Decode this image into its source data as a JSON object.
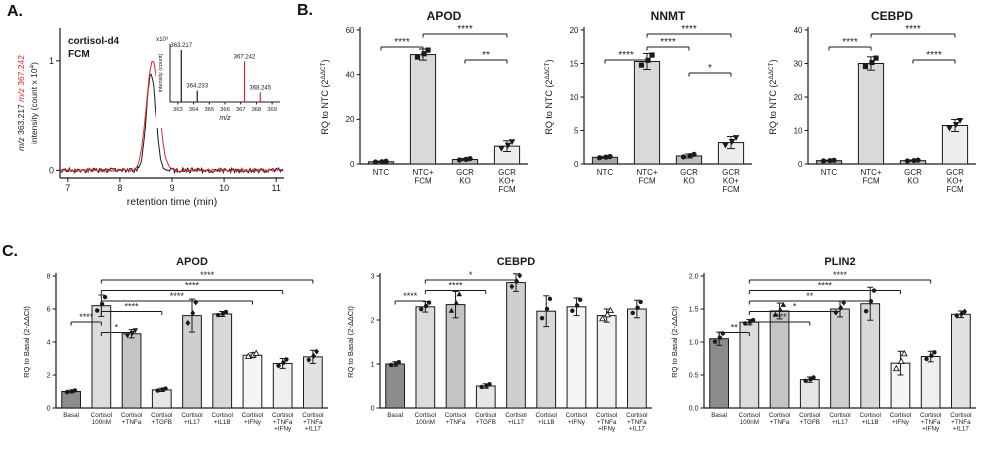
{
  "panels": {
    "a_label": "A.",
    "b_label": "B.",
    "c_label": "C."
  },
  "chart_data": [
    {
      "id": "a_chromatogram",
      "type": "line",
      "legend": [
        {
          "label": "cortisol-d4",
          "color": "#d9292b"
        },
        {
          "label": "FCM",
          "color": "#1a1a1a"
        }
      ],
      "ylabel_line1": [
        {
          "text": "m/z ",
          "italic": true,
          "color": "#1a1a1a"
        },
        {
          "text": "363.217 ",
          "italic": false,
          "color": "#1a1a1a"
        },
        {
          "text": "m/z ",
          "italic": true,
          "color": "#d9292b"
        },
        {
          "text": "367.242",
          "italic": false,
          "color": "#d9292b"
        }
      ],
      "ylabel_line2": {
        "pre": "intensity (count x 10",
        "sup": "4",
        "post": ")"
      },
      "xlabel": "retention time (min)",
      "xlim": [
        6.85,
        11.15
      ],
      "x_ticks": [
        7,
        8,
        9,
        10,
        11
      ],
      "ylim": [
        -0.07,
        1.3
      ],
      "y_ticks": [
        0,
        1
      ],
      "traces": [
        {
          "name": "FCM",
          "color": "#1a1a1a",
          "center": 8.6,
          "sigma": 0.09,
          "height": 0.88,
          "noise": 0.022
        },
        {
          "name": "cortisol-d4",
          "color": "#d9292b",
          "center": 8.63,
          "sigma": 0.12,
          "height": 1.0,
          "noise": 0.012
        }
      ],
      "inset": {
        "scale_label": "x10³",
        "ylabel": "intensity (count)",
        "xlabel": "m/z",
        "xlim": [
          362.5,
          369.5
        ],
        "x_ticks": [
          363,
          364,
          365,
          366,
          367,
          368,
          369
        ],
        "peaks": [
          {
            "mz": 363.217,
            "height": 1.0,
            "color": "#1a1a1a",
            "label": "363.217"
          },
          {
            "mz": 364.233,
            "height": 0.22,
            "color": "#1a1a1a",
            "label": "364.233"
          },
          {
            "mz": 367.242,
            "height": 0.78,
            "color": "#d9292b",
            "label": "367.242"
          },
          {
            "mz": 368.245,
            "height": 0.18,
            "color": "#d9292b",
            "label": "368.245"
          }
        ]
      }
    },
    {
      "id": "b_apod",
      "type": "bar",
      "panel": "B",
      "title": "APOD",
      "ylabel": {
        "pre": "RQ to NTC (2",
        "sup": "ΔΔCT",
        "post": ")"
      },
      "categories": [
        [
          "NTC"
        ],
        [
          "NTC+",
          "FCM"
        ],
        [
          "GCR",
          "KO"
        ],
        [
          "GCR",
          "KO+",
          "FCM"
        ]
      ],
      "values": [
        1,
        49,
        2,
        8
      ],
      "errors": [
        0.3,
        2.5,
        0.5,
        2.4
      ],
      "bar_colors": [
        "#a6a6a6",
        "#d9d9d9",
        "#bfbfbf",
        "#ececec"
      ],
      "markers": [
        "circle",
        "square",
        "circle",
        "triangle-down"
      ],
      "ylim": [
        0,
        60
      ],
      "yticks": [
        0,
        20,
        40,
        60
      ],
      "sig": [
        {
          "i1": 1,
          "i2": 3,
          "label": "****",
          "row": 0
        },
        {
          "i1": 0,
          "i2": 1,
          "label": "****",
          "row": 1
        },
        {
          "i1": 2,
          "i2": 3,
          "label": "**",
          "row": 2
        }
      ]
    },
    {
      "id": "b_nnmt",
      "type": "bar",
      "panel": "B",
      "title": "NNMT",
      "ylabel": {
        "pre": "RQ to NTC (2",
        "sup": "ΔΔCT",
        "post": ")"
      },
      "categories": [
        [
          "NTC"
        ],
        [
          "NTC+",
          "FCM"
        ],
        [
          "GCR",
          "KO"
        ],
        [
          "GCR",
          "KO+",
          "FCM"
        ]
      ],
      "values": [
        1,
        15.3,
        1.2,
        3.2
      ],
      "errors": [
        0.15,
        1.2,
        0.3,
        0.9
      ],
      "bar_colors": [
        "#a6a6a6",
        "#d9d9d9",
        "#bfbfbf",
        "#ececec"
      ],
      "markers": [
        "circle",
        "square",
        "circle",
        "triangle-down"
      ],
      "ylim": [
        0,
        20
      ],
      "yticks": [
        0,
        5,
        10,
        15,
        20
      ],
      "sig": [
        {
          "i1": 1,
          "i2": 3,
          "label": "****",
          "row": 0
        },
        {
          "i1": 1,
          "i2": 2,
          "label": "****",
          "row": 1
        },
        {
          "i1": 0,
          "i2": 1,
          "label": "****",
          "row": 2
        },
        {
          "i1": 2,
          "i2": 3,
          "label": "*",
          "row": 3
        }
      ]
    },
    {
      "id": "b_cebpd",
      "type": "bar",
      "panel": "B",
      "title": "CEBPD",
      "ylabel": {
        "pre": "RQ to NTC (2",
        "sup": "ΔΔCT",
        "post": ")"
      },
      "categories": [
        [
          "NTC"
        ],
        [
          "NTC+",
          "FCM"
        ],
        [
          "GCR",
          "KO"
        ],
        [
          "GCR",
          "KO+",
          "FCM"
        ]
      ],
      "values": [
        1,
        30,
        1,
        11.5
      ],
      "errors": [
        0.15,
        2,
        0.2,
        1.8
      ],
      "bar_colors": [
        "#a6a6a6",
        "#d9d9d9",
        "#bfbfbf",
        "#ececec"
      ],
      "markers": [
        "circle",
        "square",
        "circle",
        "triangle-down"
      ],
      "ylim": [
        0,
        40
      ],
      "yticks": [
        0,
        10,
        20,
        30,
        40
      ],
      "sig": [
        {
          "i1": 1,
          "i2": 3,
          "label": "****",
          "row": 0
        },
        {
          "i1": 0,
          "i2": 1,
          "label": "****",
          "row": 1
        },
        {
          "i1": 2,
          "i2": 3,
          "label": "****",
          "row": 2
        }
      ]
    },
    {
      "id": "c_apod",
      "type": "bar",
      "panel": "C",
      "title": "APOD",
      "ylabel": {
        "pre": "RQ to Basal (2-ΔΔCt)",
        "sup": "",
        "post": ""
      },
      "categories": [
        [
          "Basal"
        ],
        [
          "Cortisol",
          "100nM"
        ],
        [
          "Cortisol",
          "+TNFa"
        ],
        [
          "Cortisol",
          "+TGFB"
        ],
        [
          "Cortisol",
          "+IL17"
        ],
        [
          "Cortisol",
          "+IL1B"
        ],
        [
          "Cortisol",
          "+IFNy"
        ],
        [
          "Cortisol",
          "+TNFa",
          "+IFNy"
        ],
        [
          "Cortisol",
          "+TNFa",
          "+IL17"
        ]
      ],
      "values": [
        1.0,
        6.2,
        4.5,
        1.1,
        5.6,
        5.7,
        3.2,
        2.7,
        3.1
      ],
      "errors": [
        0.08,
        0.65,
        0.25,
        0.1,
        1.0,
        0.15,
        0.15,
        0.3,
        0.4
      ],
      "bar_colors": [
        "#8c8c8c",
        "#dcdcdc",
        "#c4c4c4",
        "#e6e6e6",
        "#cfcfcf",
        "#d8d8d8",
        "#f5f5f5",
        "#efefef",
        "#e2e2e2"
      ],
      "markers": [
        "circle",
        "circle",
        "triangle-down",
        "circle",
        "diamond",
        "circle",
        "triangle-open",
        "circle",
        "diamond"
      ],
      "ylim": [
        0,
        8
      ],
      "yticks": [
        0,
        2,
        4,
        6,
        8
      ],
      "sig": [
        {
          "i1": 1,
          "i2": 8,
          "label": "****",
          "row": 0
        },
        {
          "i1": 1,
          "i2": 7,
          "label": "****",
          "row": 1
        },
        {
          "i1": 1,
          "i2": 6,
          "label": "****",
          "row": 2
        },
        {
          "i1": 1,
          "i2": 3,
          "label": "****",
          "row": 3
        },
        {
          "i1": 0,
          "i2": 1,
          "label": "****",
          "row": 4
        },
        {
          "i1": 1,
          "i2": 2,
          "label": "*",
          "row": 5
        }
      ]
    },
    {
      "id": "c_cebpd",
      "type": "bar",
      "panel": "C",
      "title": "CEBPD",
      "ylabel": {
        "pre": "RQ to Basal (2-ΔΔCt)",
        "sup": "",
        "post": ""
      },
      "categories": [
        [
          "Basal"
        ],
        [
          "Cortisol",
          "100nM"
        ],
        [
          "Cortisol",
          "+TNFa"
        ],
        [
          "Cortisol",
          "+TGFB"
        ],
        [
          "Cortisol",
          "+IL17"
        ],
        [
          "Cortisol",
          "+IL1B"
        ],
        [
          "Cortisol",
          "+IFNy"
        ],
        [
          "Cortisol",
          "+TNFa",
          "+IFNy"
        ],
        [
          "Cortisol",
          "+TNFa",
          "+IL17"
        ]
      ],
      "values": [
        1.0,
        2.3,
        2.35,
        0.5,
        2.85,
        2.2,
        2.3,
        2.1,
        2.25
      ],
      "errors": [
        0.05,
        0.12,
        0.3,
        0.05,
        0.2,
        0.35,
        0.2,
        0.15,
        0.2
      ],
      "bar_colors": [
        "#8c8c8c",
        "#dcdcdc",
        "#c4c4c4",
        "#e6e6e6",
        "#cfcfcf",
        "#d8d8d8",
        "#f5f5f5",
        "#efefef",
        "#e2e2e2"
      ],
      "markers": [
        "circle",
        "circle",
        "triangle-up",
        "circle",
        "diamond",
        "circle",
        "circle",
        "triangle-open",
        "circle"
      ],
      "ylim": [
        0,
        3
      ],
      "yticks": [
        0,
        1,
        2,
        3
      ],
      "sig": [
        {
          "i1": 1,
          "i2": 4,
          "label": "*",
          "row": 0
        },
        {
          "i1": 1,
          "i2": 3,
          "label": "****",
          "row": 1
        },
        {
          "i1": 0,
          "i2": 1,
          "label": "****",
          "row": 2
        }
      ]
    },
    {
      "id": "c_plin2",
      "type": "bar",
      "panel": "C",
      "title": "PLIN2",
      "ylabel": {
        "pre": "RQ to Basal (2-ΔΔCt)",
        "sup": "",
        "post": ""
      },
      "categories": [
        [
          "Basal"
        ],
        [
          "Cortisol",
          "100nM"
        ],
        [
          "Cortisol",
          "+TNFa"
        ],
        [
          "Cortisol",
          "+TGFB"
        ],
        [
          "Cortisol",
          "+IL17"
        ],
        [
          "Cortisol",
          "+IL1B"
        ],
        [
          "Cortisol",
          "+IFNy"
        ],
        [
          "Cortisol",
          "+TNFa",
          "+IFNy"
        ],
        [
          "Cortisol",
          "+TNFa",
          "+IL17"
        ]
      ],
      "values": [
        1.05,
        1.3,
        1.47,
        0.43,
        1.5,
        1.58,
        0.68,
        0.78,
        1.42
      ],
      "errors": [
        0.1,
        0.04,
        0.12,
        0.04,
        0.12,
        0.25,
        0.18,
        0.08,
        0.05
      ],
      "bar_colors": [
        "#8c8c8c",
        "#dcdcdc",
        "#c4c4c4",
        "#e6e6e6",
        "#cfcfcf",
        "#d8d8d8",
        "#f5f5f5",
        "#efefef",
        "#e2e2e2"
      ],
      "markers": [
        "circle",
        "circle",
        "triangle-up",
        "circle",
        "diamond",
        "circle",
        "triangle-open",
        "circle",
        "diamond"
      ],
      "ylim": [
        0,
        2
      ],
      "yticks": [
        0,
        0.5,
        1,
        1.5,
        2
      ],
      "sig": [
        {
          "i1": 1,
          "i2": 7,
          "label": "****",
          "row": 0
        },
        {
          "i1": 1,
          "i2": 6,
          "label": "****",
          "row": 1
        },
        {
          "i1": 1,
          "i2": 5,
          "label": "**",
          "row": 2
        },
        {
          "i1": 1,
          "i2": 4,
          "label": "*",
          "row": 3
        },
        {
          "i1": 1,
          "i2": 3,
          "label": "****",
          "row": 4
        },
        {
          "i1": 0,
          "i2": 1,
          "label": "**",
          "row": 5
        }
      ]
    }
  ]
}
